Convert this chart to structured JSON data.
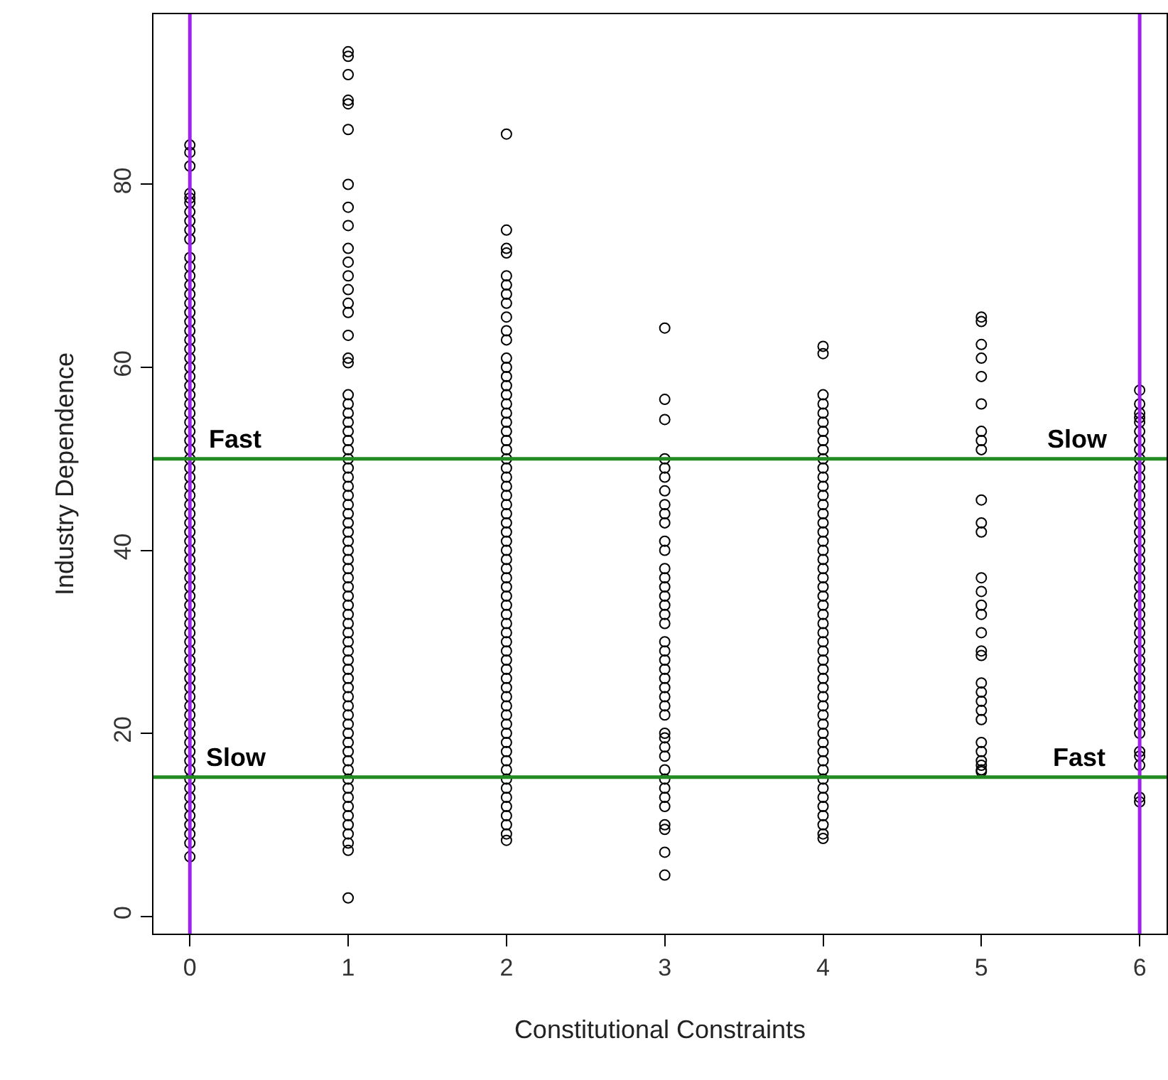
{
  "chart_data": {
    "type": "scatter",
    "xlabel": "Constitutional Constraints",
    "ylabel": "Industry Dependence",
    "series": [
      {
        "color": "#000000",
        "x": [
          0,
          0,
          0,
          0,
          0,
          0,
          0,
          0,
          0,
          0,
          0,
          0,
          0,
          0,
          0,
          0,
          0,
          0,
          0,
          0,
          0,
          0,
          0,
          0,
          0,
          0,
          0,
          0,
          0,
          0,
          0,
          0,
          0,
          0,
          0,
          0,
          0,
          0,
          0,
          0,
          0,
          0,
          0,
          0,
          0,
          0,
          0,
          0,
          0,
          0,
          0,
          0,
          0,
          0,
          0,
          0,
          0,
          0,
          0,
          0,
          0,
          0,
          0,
          0,
          0,
          0,
          0,
          0,
          0,
          0,
          0,
          0,
          0,
          0,
          0,
          0,
          1,
          1,
          1,
          1,
          1,
          1,
          1,
          1,
          1,
          1,
          1,
          1,
          1,
          1,
          1,
          1,
          1,
          1,
          1,
          1,
          1,
          1,
          1,
          1,
          1,
          1,
          1,
          1,
          1,
          1,
          1,
          1,
          1,
          1,
          1,
          1,
          1,
          1,
          1,
          1,
          1,
          1,
          1,
          1,
          1,
          1,
          1,
          1,
          1,
          1,
          1,
          1,
          1,
          1,
          1,
          1,
          1,
          1,
          1,
          1,
          1,
          1,
          1,
          1,
          1,
          1,
          1,
          1,
          1,
          1,
          2,
          2,
          2,
          2,
          2,
          2,
          2,
          2,
          2,
          2,
          2,
          2,
          2,
          2,
          2,
          2,
          2,
          2,
          2,
          2,
          2,
          2,
          2,
          2,
          2,
          2,
          2,
          2,
          2,
          2,
          2,
          2,
          2,
          2,
          2,
          2,
          2,
          2,
          2,
          2,
          2,
          2,
          2,
          2,
          2,
          2,
          2,
          2,
          2,
          2,
          2,
          2,
          2,
          2,
          2,
          2,
          2,
          2,
          2,
          2,
          2,
          2,
          2,
          2,
          2,
          3,
          3,
          3,
          3,
          3,
          3,
          3,
          3,
          3,
          3,
          3,
          3,
          3,
          3,
          3,
          3,
          3,
          3,
          3,
          3,
          3,
          3,
          3,
          3,
          3,
          3,
          3,
          3,
          3,
          3,
          3,
          3,
          3,
          3,
          3,
          3,
          3,
          3,
          3,
          3,
          3,
          4,
          4,
          4,
          4,
          4,
          4,
          4,
          4,
          4,
          4,
          4,
          4,
          4,
          4,
          4,
          4,
          4,
          4,
          4,
          4,
          4,
          4,
          4,
          4,
          4,
          4,
          4,
          4,
          4,
          4,
          4,
          4,
          4,
          4,
          4,
          4,
          4,
          4,
          4,
          4,
          4,
          4,
          4,
          4,
          4,
          4,
          4,
          4,
          4,
          4,
          4,
          4,
          5,
          5,
          5,
          5,
          5,
          5,
          5,
          5,
          5,
          5,
          5,
          5,
          5,
          5,
          5,
          5,
          5,
          5,
          5,
          5,
          5,
          5,
          5,
          5,
          5,
          5,
          5,
          5,
          5,
          5,
          6,
          6,
          6,
          6,
          6,
          6,
          6,
          6,
          6,
          6,
          6,
          6,
          6,
          6,
          6,
          6,
          6,
          6,
          6,
          6,
          6,
          6,
          6,
          6,
          6,
          6,
          6,
          6,
          6,
          6,
          6,
          6,
          6,
          6,
          6,
          6,
          6,
          6,
          6,
          6,
          6,
          6,
          6,
          6
        ],
        "values": [
          84.3,
          83.5,
          82,
          79,
          78.5,
          78,
          77,
          76,
          75,
          74,
          72,
          71,
          70,
          69,
          68,
          67,
          66,
          65,
          64,
          63,
          62,
          61,
          60,
          59,
          58,
          57,
          56,
          55,
          54,
          53,
          52,
          51,
          50,
          49,
          48,
          47,
          46,
          45,
          44,
          43,
          42,
          41,
          40,
          39,
          38,
          37,
          36,
          35,
          34,
          33,
          32,
          31,
          30,
          29,
          28,
          27,
          26,
          25,
          24,
          23,
          22,
          21,
          20,
          19,
          18,
          17,
          16,
          15,
          14,
          13,
          12,
          11,
          10,
          9,
          8,
          6.5,
          94.5,
          94,
          92,
          89.2,
          88.8,
          86,
          80,
          77.5,
          75.5,
          73,
          71.5,
          70,
          68.5,
          67,
          66,
          63.5,
          61,
          60.5,
          57,
          56,
          55,
          54,
          53,
          52,
          51,
          50,
          49,
          48,
          47,
          46,
          45,
          44,
          43,
          42,
          41,
          40,
          39,
          38,
          37,
          36,
          35,
          34,
          33,
          32,
          31,
          30,
          29,
          28,
          27,
          26,
          25,
          24,
          23,
          22,
          21,
          20,
          19,
          18,
          17,
          16,
          15,
          14,
          13,
          12,
          11,
          10,
          9,
          8,
          7.2,
          2,
          85.5,
          75,
          73,
          72.5,
          70,
          69,
          68,
          67,
          65.5,
          64,
          63,
          61,
          60,
          59,
          58,
          57,
          56,
          55,
          54,
          53,
          52,
          51,
          50,
          49,
          48,
          47,
          46,
          45,
          44,
          43,
          42,
          41,
          40,
          39,
          38,
          37,
          36,
          35,
          34,
          33,
          32,
          31,
          30,
          29,
          28,
          27,
          26,
          25,
          24,
          23,
          22,
          21,
          20,
          19,
          18,
          17,
          16,
          15,
          14,
          13,
          12,
          11,
          10,
          9,
          8.3,
          64.3,
          56.5,
          54.3,
          50,
          49,
          48,
          46.5,
          45,
          44,
          43,
          41,
          40,
          38,
          37,
          36,
          35,
          34,
          33,
          32,
          30,
          29,
          28,
          27,
          26,
          25,
          24,
          23,
          22,
          20,
          19.5,
          18.5,
          17.5,
          16,
          15,
          14,
          13,
          12,
          10,
          9.5,
          7,
          4.5,
          62.3,
          61.5,
          57,
          56,
          55,
          54,
          53,
          52,
          51,
          50,
          49,
          48,
          47,
          46,
          45,
          44,
          43,
          42,
          41,
          40,
          39,
          38,
          37,
          36,
          35,
          34,
          33,
          32,
          31,
          30,
          29,
          28,
          27,
          26,
          25,
          24,
          23,
          22,
          21,
          20,
          19,
          18,
          17,
          16,
          15,
          14,
          13,
          12,
          11,
          10,
          9,
          8.5,
          65.5,
          65,
          62.5,
          61,
          59,
          56,
          53,
          52,
          51,
          45.5,
          43,
          42,
          37,
          35.5,
          34,
          33,
          31,
          29,
          28.5,
          25.5,
          24.5,
          23.5,
          22.5,
          21.5,
          19,
          18,
          17,
          16.5,
          16,
          15.8,
          57.5,
          56,
          55,
          54.5,
          54,
          53,
          52,
          51,
          50,
          49,
          48,
          47,
          46,
          45,
          44,
          43,
          42,
          41,
          40,
          39,
          38,
          37,
          36,
          35,
          34,
          33,
          32,
          31,
          30,
          29,
          28,
          27,
          26,
          25,
          24,
          23,
          22,
          21,
          20,
          18,
          17.5,
          16.5,
          13,
          12.5
        ]
      }
    ],
    "xlim": [
      -0.23,
      6.17
    ],
    "ylim": [
      -1.9,
      98.6
    ],
    "xticks": [
      0,
      1,
      2,
      3,
      4,
      5,
      6
    ],
    "yticks": [
      0,
      20,
      40,
      60,
      80
    ],
    "marker": "circle",
    "grid": false,
    "ref_lines": [
      {
        "axis": "x",
        "value": 0,
        "color": "#a020f0"
      },
      {
        "axis": "x",
        "value": 6,
        "color": "#a020f0"
      },
      {
        "axis": "y",
        "value": 50,
        "color": "#228b22"
      },
      {
        "axis": "y",
        "value": 15.2,
        "color": "#228b22"
      }
    ],
    "annotations": [
      {
        "text": "Fast",
        "x": 0.1,
        "y": 50
      },
      {
        "text": "Slow",
        "x": 0.08,
        "y": 15.2
      },
      {
        "text": "Slow",
        "x": 5.82,
        "y": 50
      },
      {
        "text": "Fast",
        "x": 5.8,
        "y": 15.2
      }
    ]
  }
}
